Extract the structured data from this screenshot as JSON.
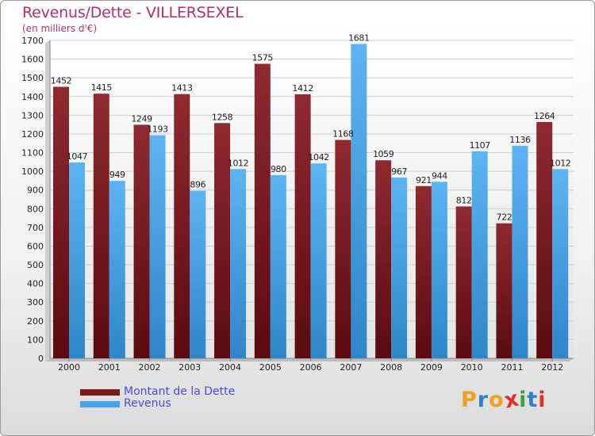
{
  "chart": {
    "title": "Revenus/Dette - VILLERSEXEL",
    "subtitle": "(en milliers d'€)"
  },
  "legend": {
    "items": [
      {
        "label": "Montant de la Dette",
        "color": "#7a1a1e"
      },
      {
        "label": "Revenus",
        "color": "#4aa3e8"
      }
    ]
  },
  "logo": {
    "text": "Proxiti",
    "letters": [
      {
        "ch": "P",
        "color": "#f0a020"
      },
      {
        "ch": "r",
        "color": "#2f7fd0"
      },
      {
        "ch": "o",
        "color": "#f0a020"
      },
      {
        "ch": "x",
        "color": "#e0302a"
      },
      {
        "ch": "i",
        "color": "#3aa43a"
      },
      {
        "ch": "t",
        "color": "#2f7fd0"
      },
      {
        "ch": "i",
        "color": "#e0302a"
      }
    ]
  },
  "chart_data": {
    "type": "bar",
    "title": "Revenus/Dette - VILLERSEXEL",
    "subtitle": "(en milliers d'€)",
    "categories": [
      "2000",
      "2001",
      "2002",
      "2003",
      "2004",
      "2005",
      "2006",
      "2007",
      "2008",
      "2009",
      "2010",
      "2011",
      "2012"
    ],
    "series": [
      {
        "name": "Montant de la Dette",
        "color": "#7a1a1e",
        "values": [
          1452,
          1415,
          1249,
          1413,
          1258,
          1575,
          1412,
          1168,
          1059,
          921,
          812,
          722,
          1264
        ]
      },
      {
        "name": "Revenus",
        "color": "#4aa3e8",
        "values": [
          1047,
          949,
          1193,
          896,
          1012,
          980,
          1042,
          1681,
          967,
          944,
          1107,
          1136,
          1012
        ]
      }
    ],
    "yticks": [
      "0",
      "100",
      "200",
      "300",
      "400",
      "500",
      "600",
      "700",
      "800",
      "900",
      "1000",
      "1100",
      "1200",
      "1300",
      "1400",
      "1500",
      "1600",
      "1700"
    ],
    "ylim": [
      0,
      1700
    ],
    "grid": true,
    "legend_position": "bottom-left"
  }
}
